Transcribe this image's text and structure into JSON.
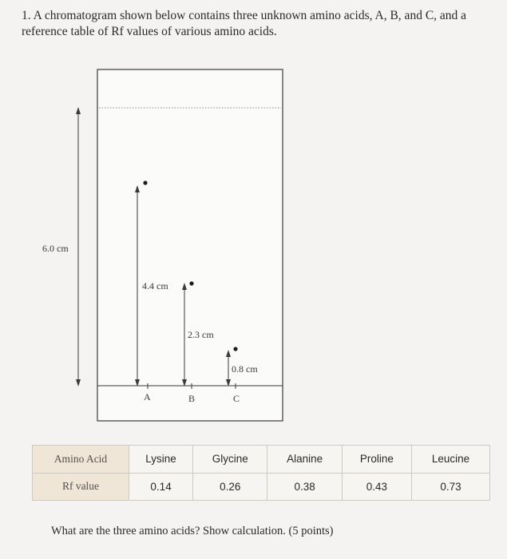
{
  "question": {
    "text": "1. A chromatogram shown below contains three unknown amino acids, A, B, and C, and a reference table of Rf values of various amino acids."
  },
  "chromatogram": {
    "solvent_distance_label": "6.0 cm",
    "lane_a": {
      "name": "A",
      "distance_label": "4.4 cm"
    },
    "lane_b": {
      "name": "B",
      "distance_label": "2.3 cm"
    },
    "lane_c": {
      "name": "C",
      "distance_label": "0.8 cm"
    }
  },
  "reference_table": {
    "row_headers": [
      "Amino Acid",
      "Rf value"
    ],
    "amino_acids": [
      "Lysine",
      "Glycine",
      "Alanine",
      "Proline",
      "Leucine"
    ],
    "rf_values": [
      "0.14",
      "0.26",
      "0.38",
      "0.43",
      "0.73"
    ]
  },
  "prompt": {
    "text": "What are the three amino acids? Show calculation. (5 points)"
  }
}
